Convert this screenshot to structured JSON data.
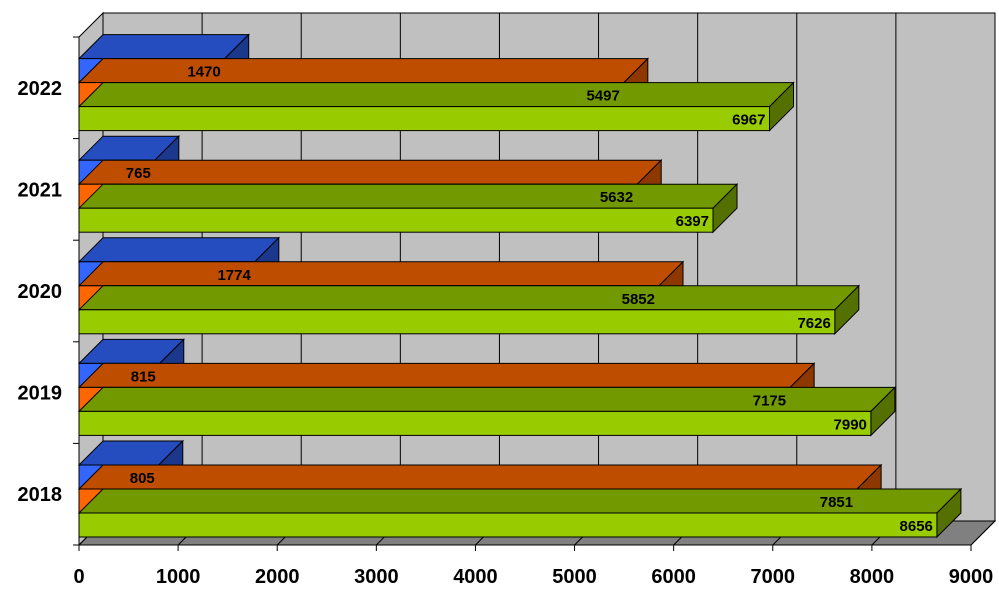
{
  "chart_data": {
    "type": "bar",
    "orientation": "horizontal",
    "style": "3d",
    "title": "",
    "xlabel": "",
    "ylabel": "",
    "categories": [
      "2018",
      "2019",
      "2020",
      "2021",
      "2022"
    ],
    "series": [
      {
        "color": "#3366FF",
        "values": [
          805,
          815,
          1774,
          765,
          1470
        ]
      },
      {
        "color": "#FF6600",
        "values": [
          7851,
          7175,
          5852,
          5632,
          5497
        ]
      },
      {
        "color": "#99CC00",
        "values": [
          8656,
          7990,
          7626,
          6397,
          6967
        ]
      }
    ],
    "xlim": [
      0,
      9000
    ],
    "x_ticks": [
      "0",
      "1000",
      "2000",
      "3000",
      "4000",
      "5000",
      "6000",
      "7000",
      "8000",
      "9000"
    ],
    "grid": true,
    "legend": "none",
    "wall_color": "#C0C0C0",
    "floor_color": "#808080"
  }
}
